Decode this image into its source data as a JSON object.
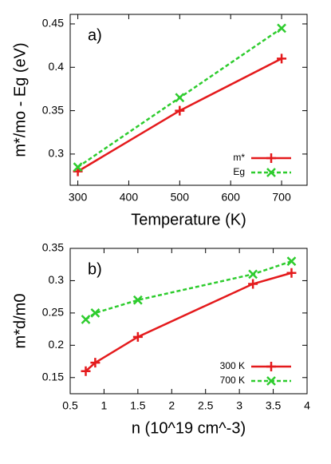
{
  "chart_data": [
    {
      "type": "line",
      "panel_label": "a)",
      "x_label": "Temperature (K)",
      "y_label": "m*/mo - Eg (eV)",
      "x": [
        300,
        500,
        700
      ],
      "series": [
        {
          "name": "m*",
          "color": "#e41a1c",
          "marker": "plus",
          "dashed": false,
          "values": [
            0.28,
            0.35,
            0.41
          ]
        },
        {
          "name": "Eg",
          "color": "#2ecc2e",
          "marker": "cross",
          "dashed": true,
          "values": [
            0.285,
            0.365,
            0.445
          ]
        }
      ],
      "xlim": [
        285,
        750
      ],
      "xticks": [
        300,
        400,
        500,
        600,
        700
      ],
      "ylim": [
        0.264,
        0.461
      ],
      "yticks": [
        0.3,
        0.35,
        0.4,
        0.45
      ],
      "legend": "lower right"
    },
    {
      "type": "line",
      "panel_label": "b)",
      "x_label": "n (10^19 cm^-3)",
      "y_label": "m*d/m0",
      "x": [
        0.73,
        0.87,
        1.5,
        3.2,
        3.77
      ],
      "series": [
        {
          "name": "300 K",
          "color": "#e41a1c",
          "marker": "plus",
          "dashed": false,
          "values": [
            0.16,
            0.173,
            0.213,
            0.295,
            0.312
          ]
        },
        {
          "name": "700 K",
          "color": "#2ecc2e",
          "marker": "cross",
          "dashed": true,
          "values": [
            0.24,
            0.25,
            0.27,
            0.31,
            0.33
          ]
        }
      ],
      "xlim": [
        0.5,
        4
      ],
      "xticks": [
        0.5,
        1,
        1.5,
        2,
        2.5,
        3,
        3.5,
        4
      ],
      "ylim": [
        0.125,
        0.35
      ],
      "yticks": [
        0.15,
        0.2,
        0.25,
        0.3,
        0.35
      ],
      "legend": "lower right"
    }
  ]
}
